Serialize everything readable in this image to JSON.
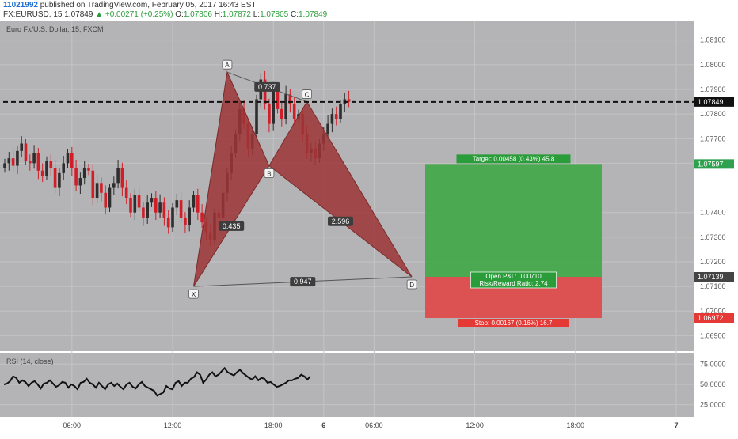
{
  "header": {
    "user": "11021992",
    "published": "published on TradingView.com, February 05, 2017 16:43 EST",
    "symbol": "FX:EURUSD, 15",
    "last": "1.07849",
    "change": "+0.00271 (+0.25%)",
    "o_label": "O:",
    "o_value": "1.07806",
    "h_label": "H:",
    "h_value": "1.07872",
    "l_label": "L:",
    "l_value": "1.07805",
    "c_label": "C:",
    "c_value": "1.07849"
  },
  "chart_data": {
    "type": "candlestick",
    "title": "Euro Fx/U.S. Dollar, 15, FXCM",
    "ylim": [
      1.0685,
      1.0816
    ],
    "y_ticks": [
      "1.08100",
      "1.08000",
      "1.07900",
      "1.07800",
      "1.07700",
      "1.07600",
      "1.07400",
      "1.07300",
      "1.07200",
      "1.07100",
      "1.07000",
      "1.06900"
    ],
    "x_ticks": [
      "06:00",
      "12:00",
      "18:00",
      "6",
      "06:00",
      "12:00",
      "18:00",
      "7"
    ],
    "current_price": "1.07849",
    "price_tags": [
      {
        "text": "1.07597",
        "value": 1.07597,
        "color": "#2ea04f"
      },
      {
        "text": "1.07139",
        "value": 1.07139,
        "color": "#444444"
      },
      {
        "text": "1.06972",
        "value": 1.06972,
        "color": "#e53935"
      }
    ],
    "pattern": {
      "points": [
        {
          "label": "X",
          "price": 1.071
        },
        {
          "label": "A",
          "price": 1.0797
        },
        {
          "label": "B",
          "price": 1.0759
        },
        {
          "label": "C",
          "price": 1.0785
        },
        {
          "label": "D",
          "price": 1.07139
        }
      ],
      "ratios": [
        {
          "text": "0.435"
        },
        {
          "text": "0.737"
        },
        {
          "text": "2.596"
        },
        {
          "text": "0.947"
        }
      ]
    },
    "position": {
      "target": 1.07597,
      "entry": 1.07139,
      "stop": 1.06972,
      "target_label": "Target: 0.00458 (0.43%) 45.8",
      "pnl_label": "Open P&L: 0.00710",
      "rr_label": "Risk/Reward Ratio: 2.74",
      "stop_label": "Stop: 0.00167 (0.16%) 16.7"
    },
    "rsi": {
      "title": "RSI (14, close)",
      "ylim": [
        12,
        86
      ],
      "ticks": [
        "75.0000",
        "50.0000",
        "25.0000"
      ],
      "values": [
        50,
        51,
        54,
        60,
        58,
        52,
        55,
        53,
        48,
        52,
        54,
        50,
        45,
        51,
        52,
        55,
        51,
        47,
        49,
        53,
        52,
        46,
        50,
        48,
        44,
        52,
        53,
        57,
        52,
        50,
        46,
        52,
        48,
        44,
        50,
        52,
        48,
        51,
        47,
        44,
        50,
        52,
        47,
        45,
        50,
        53,
        48,
        46,
        44,
        42,
        36,
        38,
        40,
        48,
        45,
        44,
        52,
        54,
        48,
        52,
        52,
        57,
        59,
        65,
        62,
        52,
        56,
        62,
        65,
        60,
        62,
        66,
        70,
        65,
        63,
        61,
        65,
        68,
        64,
        61,
        58,
        56,
        60,
        55,
        58,
        57,
        52,
        53,
        50,
        47,
        48,
        50,
        52,
        55,
        55,
        57,
        58,
        62,
        60,
        56,
        60
      ]
    }
  },
  "colors": {
    "bg": "#b4b3b5",
    "up": "#2e2e2e",
    "down": "#d21e28",
    "pattern": "#9c3536",
    "target": "#3fa846",
    "stop": "#e04747"
  }
}
